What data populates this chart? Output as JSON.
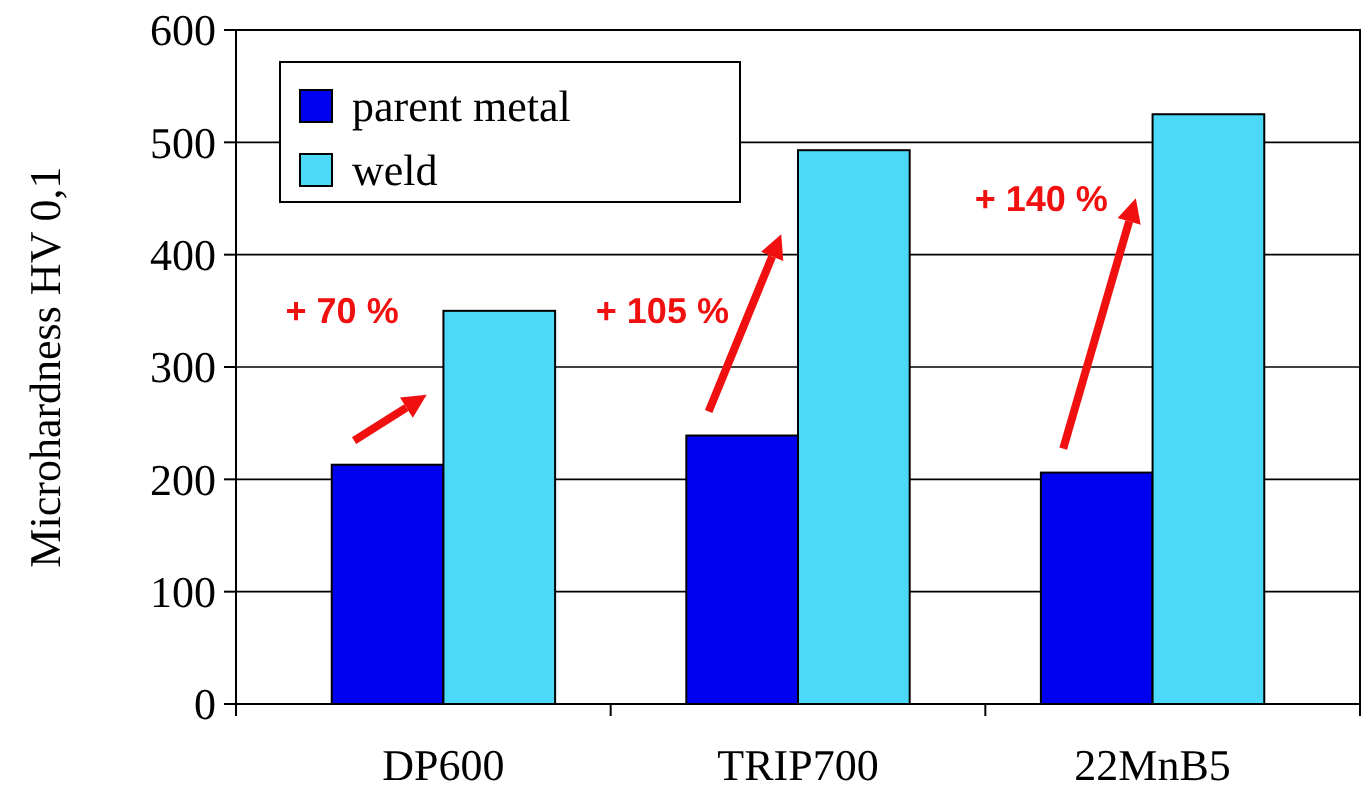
{
  "chart_data": {
    "type": "bar",
    "ylabel": "Microhardness HV 0,1",
    "categories": [
      "DP600",
      "TRIP700",
      "22MnB5"
    ],
    "series": [
      {
        "name": "parent metal",
        "color": "#0000f0",
        "values": [
          213,
          239,
          206
        ]
      },
      {
        "name": "weld",
        "color": "#4cd8f8",
        "values": [
          350,
          493,
          525
        ]
      }
    ],
    "ylim": [
      0,
      600
    ],
    "yticks": [
      0,
      100,
      200,
      300,
      400,
      500,
      600
    ],
    "grid": "y",
    "legend": "top left",
    "annotations": [
      "+ 70 %",
      "+ 105 %",
      "+ 140 %"
    ]
  }
}
